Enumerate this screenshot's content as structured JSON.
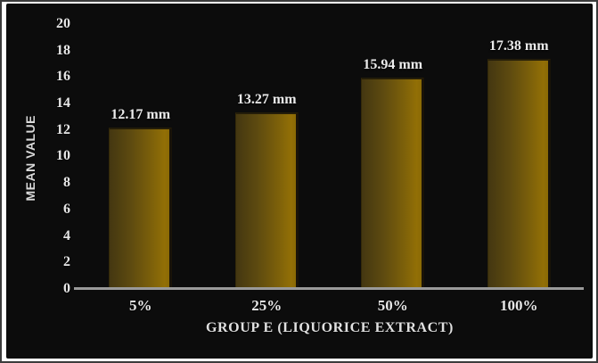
{
  "figure": {
    "outer_background": "#ffffff",
    "panel_background": "#0c0c0c",
    "outer_border_color": "#3c3c3c"
  },
  "chart_data": {
    "type": "bar",
    "title": "",
    "categories": [
      "5%",
      "25%",
      "50%",
      "100%"
    ],
    "values": [
      12.17,
      13.27,
      15.94,
      17.38
    ],
    "bar_labels": [
      "12.17 mm",
      "13.27 mm",
      "15.94 mm",
      "17.38 mm"
    ],
    "xlabel": "GROUP E (LIQUORICE EXTRACT)",
    "ylabel": "MEAN VALUE",
    "ylim": [
      0,
      20
    ],
    "yticks": [
      20,
      18,
      16,
      14,
      12,
      10,
      8,
      6,
      4,
      2,
      0
    ],
    "grid": false,
    "legend_position": "none",
    "bar_gradient": [
      "#443711",
      "#926f06"
    ],
    "axis_line_color": "#9a9a9a",
    "text_color": "#e7e7e7"
  }
}
